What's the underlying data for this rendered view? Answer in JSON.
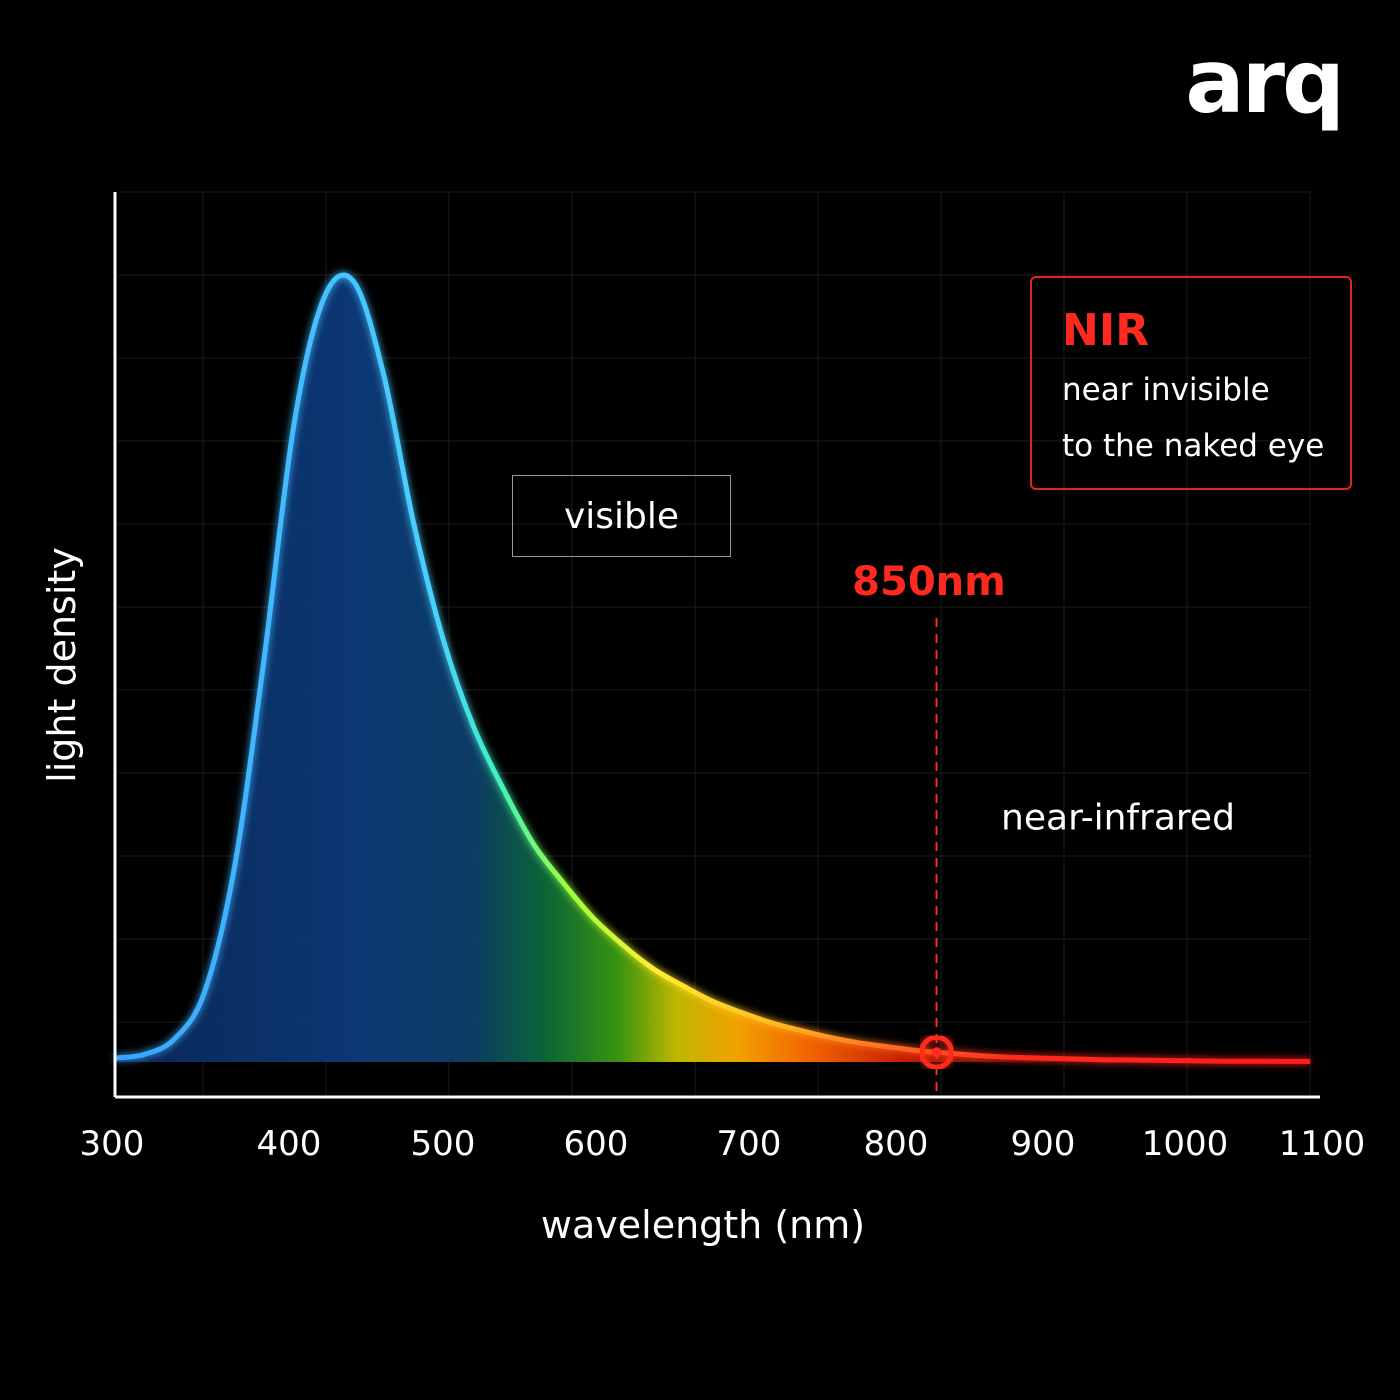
{
  "brand": {
    "logo_text": "arq"
  },
  "chart_data": {
    "type": "area",
    "title": "",
    "xlabel": "wavelength (nm)",
    "ylabel": "light density",
    "xlim": [
      300,
      1100
    ],
    "ylim": [
      0,
      1
    ],
    "x_ticks": [
      "300",
      "400",
      "500",
      "600",
      "700",
      "800",
      "900",
      "1000",
      "1100"
    ],
    "grid": true,
    "series": [
      {
        "x": [
          300,
          320,
          340,
          360,
          380,
          400,
          420,
          440,
          460,
          480,
          500,
          520,
          540,
          560,
          580,
          600,
          620,
          640,
          660,
          680,
          700,
          720,
          740,
          760,
          780,
          800,
          820,
          840,
          860,
          880,
          900,
          920,
          940,
          960,
          980,
          1000,
          1020,
          1040,
          1060,
          1080,
          1100
        ],
        "y": [
          0.005,
          0.01,
          0.03,
          0.09,
          0.25,
          0.52,
          0.82,
          0.98,
          1.0,
          0.88,
          0.69,
          0.54,
          0.43,
          0.35,
          0.28,
          0.23,
          0.185,
          0.15,
          0.12,
          0.098,
          0.078,
          0.063,
          0.05,
          0.04,
          0.031,
          0.024,
          0.019,
          0.014,
          0.011,
          0.008,
          0.006,
          0.005,
          0.004,
          0.003,
          0.0025,
          0.002,
          0.0015,
          0.001,
          0.001,
          0.0008,
          0.0006
        ]
      }
    ],
    "annotations": {
      "visible_label": "visible",
      "region_label": "near-infrared",
      "marker": {
        "x": 850,
        "label": "850nm",
        "color": "#ff2a1f"
      },
      "callout": {
        "title": "NIR",
        "lines": [
          "near invisible",
          "to the naked eye"
        ]
      }
    },
    "colors": {
      "background": "#000000",
      "accent": "#ff2a1f",
      "grid": "#1c1c1c",
      "axis": "#ffffff"
    }
  }
}
